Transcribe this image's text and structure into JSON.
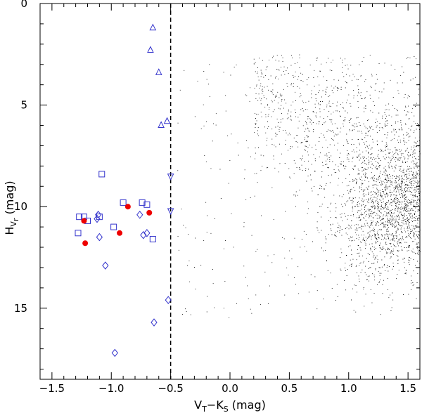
{
  "chart_data": {
    "type": "scatter",
    "title": "",
    "xlabel": {
      "main": "V",
      "sub1": "T",
      "mid": "−K",
      "sub2": "S",
      "unit": " (mag)"
    },
    "ylabel": {
      "main": "H",
      "sub": "V",
      "subsub": "r",
      "unit": " (mag)"
    },
    "xlim": [
      -1.6,
      1.6
    ],
    "ylim": [
      18.5,
      0
    ],
    "y_inverted": true,
    "xticks": [
      -1.5,
      -1.0,
      -0.5,
      0.0,
      0.5,
      1.0,
      1.5
    ],
    "xtick_labels": [
      "−1.5",
      "−1.0",
      "−0.5",
      "0.0",
      "0.5",
      "1.0",
      "1.5"
    ],
    "yticks": [
      0,
      5,
      10,
      15
    ],
    "ytick_labels": [
      "0",
      "5",
      "10",
      "15"
    ],
    "cutoff_line": {
      "x": -0.5,
      "style": "dashed",
      "color": "#000000"
    },
    "series": [
      {
        "marker": "triangle-up",
        "color": "#3333cc",
        "points": [
          [
            -0.65,
            1.2
          ],
          [
            -0.67,
            2.3
          ],
          [
            -0.6,
            3.4
          ],
          [
            -0.58,
            6.0
          ],
          [
            -0.53,
            5.8
          ]
        ]
      },
      {
        "marker": "triangle-down",
        "color": "#3333cc",
        "points": [
          [
            -0.5,
            8.5
          ],
          [
            -0.5,
            10.2
          ]
        ]
      },
      {
        "marker": "square",
        "color": "#3333cc",
        "points": [
          [
            -1.08,
            8.4
          ],
          [
            -0.9,
            9.8
          ],
          [
            -0.74,
            9.8
          ],
          [
            -0.7,
            9.9
          ],
          [
            -1.27,
            10.5
          ],
          [
            -1.23,
            10.5
          ],
          [
            -1.1,
            10.5
          ],
          [
            -1.2,
            10.7
          ],
          [
            -0.98,
            11.0
          ],
          [
            -1.28,
            11.3
          ],
          [
            -0.65,
            11.6
          ]
        ]
      },
      {
        "marker": "diamond",
        "color": "#3333cc",
        "points": [
          [
            -0.76,
            10.4
          ],
          [
            -1.11,
            10.4
          ],
          [
            -1.12,
            10.6
          ],
          [
            -0.73,
            11.4
          ],
          [
            -0.7,
            11.3
          ],
          [
            -1.1,
            11.5
          ],
          [
            -1.05,
            12.9
          ],
          [
            -0.52,
            14.6
          ],
          [
            -0.64,
            15.7
          ],
          [
            -0.97,
            17.2
          ]
        ]
      },
      {
        "marker": "filled-circle",
        "color": "#ee0000",
        "points": [
          [
            -1.23,
            10.7
          ],
          [
            -1.22,
            11.8
          ],
          [
            -0.86,
            10.0
          ],
          [
            -0.68,
            10.3
          ],
          [
            -0.93,
            11.3
          ]
        ]
      }
    ],
    "background_distribution": {
      "description_marks": "dense field of small black dots",
      "color": "#000000",
      "x_range": [
        -0.5,
        1.6
      ],
      "y_range": [
        2.5,
        16
      ],
      "peak": [
        1.45,
        10.0
      ]
    }
  }
}
